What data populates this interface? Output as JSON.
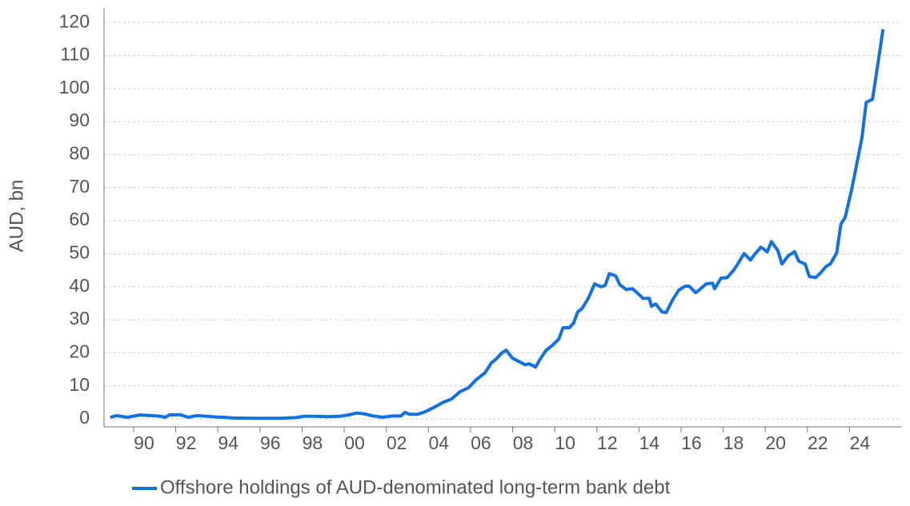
{
  "chart_data": {
    "type": "line",
    "y_label": "AUD, bn",
    "x": [
      1988.4,
      1988.7,
      1989.2,
      1989.8,
      1990.4,
      1990.8,
      1991.0,
      1991.2,
      1991.7,
      1992.1,
      1992.5,
      1993.0,
      1993.4,
      1993.8,
      1994.2,
      1995.3,
      1996.5,
      1997.2,
      1997.6,
      1998.2,
      1998.7,
      1999.3,
      1999.7,
      2000.1,
      2000.5,
      2000.8,
      2001.3,
      2001.8,
      2002.2,
      2002.4,
      2002.6,
      2003.0,
      2003.4,
      2003.8,
      2004.2,
      2004.6,
      2005.0,
      2005.4,
      2005.8,
      2006.2,
      2006.5,
      2006.7,
      2007.0,
      2007.2,
      2007.5,
      2007.8,
      2008.1,
      2008.3,
      2008.6,
      2008.8,
      2009.1,
      2009.4,
      2009.7,
      2009.9,
      2010.2,
      2010.4,
      2010.6,
      2010.8,
      2011.1,
      2011.4,
      2011.7,
      2011.9,
      2012.1,
      2012.4,
      2012.6,
      2012.9,
      2013.2,
      2013.5,
      2013.7,
      2014.0,
      2014.1,
      2014.3,
      2014.6,
      2014.8,
      2015.1,
      2015.4,
      2015.7,
      2015.9,
      2016.2,
      2016.4,
      2016.7,
      2017.0,
      2017.1,
      2017.4,
      2017.7,
      2018.0,
      2018.2,
      2018.5,
      2018.8,
      2019.0,
      2019.3,
      2019.6,
      2019.8,
      2020.1,
      2020.3,
      2020.6,
      2020.9,
      2021.1,
      2021.4,
      2021.6,
      2021.9,
      2022.1,
      2022.4,
      2022.6,
      2022.9,
      2023.1,
      2023.3,
      2023.6,
      2023.8,
      2024.1,
      2024.3,
      2024.6,
      2024.9,
      2025.1
    ],
    "series": [
      {
        "name": "Offshore holdings of AUD-denominated long-term bank debt",
        "color": "#1170e4",
        "values": [
          0.5,
          1,
          0.5,
          1.2,
          1,
          0.8,
          0.5,
          1.2,
          1.3,
          0.5,
          1,
          0.8,
          0.6,
          0.5,
          0.3,
          0.2,
          0.2,
          0.4,
          0.8,
          0.8,
          0.7,
          0.8,
          1.2,
          1.8,
          1.5,
          1,
          0.5,
          0.9,
          0.9,
          2,
          1.4,
          1.4,
          2.3,
          3.6,
          5,
          6,
          8.2,
          9.4,
          12,
          14,
          17,
          18,
          20,
          20.8,
          18.4,
          17.4,
          16.4,
          16.7,
          15.7,
          18,
          20.8,
          22.3,
          24.2,
          27.6,
          27.6,
          29,
          32.4,
          33.4,
          36.5,
          40.9,
          40,
          40.4,
          44,
          43.3,
          40.6,
          39.2,
          39.4,
          37.7,
          36.5,
          36.5,
          34.1,
          34.8,
          32.4,
          32.2,
          36,
          39,
          40.2,
          40.2,
          38.2,
          39.2,
          40.9,
          41.1,
          39.4,
          42.6,
          42.8,
          45,
          46.9,
          50.1,
          48.1,
          49.8,
          52,
          50.6,
          53.7,
          51,
          46.9,
          49.4,
          50.6,
          47.7,
          46.9,
          43.1,
          42.8,
          44,
          46.2,
          46.9,
          50.3,
          59,
          61,
          69.2,
          75.5,
          85.2,
          95.8,
          96.8,
          109.4,
          118
        ]
      }
    ],
    "xlim": [
      1988.1,
      2026.0
    ],
    "xticks": [
      {
        "value": 1990,
        "label": "90"
      },
      {
        "value": 1992,
        "label": "92"
      },
      {
        "value": 1994,
        "label": "94"
      },
      {
        "value": 1996,
        "label": "96"
      },
      {
        "value": 1998,
        "label": "98"
      },
      {
        "value": 2000,
        "label": "00"
      },
      {
        "value": 2002,
        "label": "02"
      },
      {
        "value": 2004,
        "label": "04"
      },
      {
        "value": 2006,
        "label": "06"
      },
      {
        "value": 2008,
        "label": "08"
      },
      {
        "value": 2010,
        "label": "10"
      },
      {
        "value": 2012,
        "label": "12"
      },
      {
        "value": 2014,
        "label": "14"
      },
      {
        "value": 2016,
        "label": "16"
      },
      {
        "value": 2018,
        "label": "18"
      },
      {
        "value": 2020,
        "label": "20"
      },
      {
        "value": 2022,
        "label": "22"
      },
      {
        "value": 2024,
        "label": "24"
      }
    ],
    "ylim": [
      -2.4,
      124.4
    ],
    "yticks": [
      0,
      10,
      20,
      30,
      40,
      50,
      60,
      70,
      80,
      90,
      100,
      110,
      120
    ],
    "grid": true,
    "legend": "bottom"
  }
}
